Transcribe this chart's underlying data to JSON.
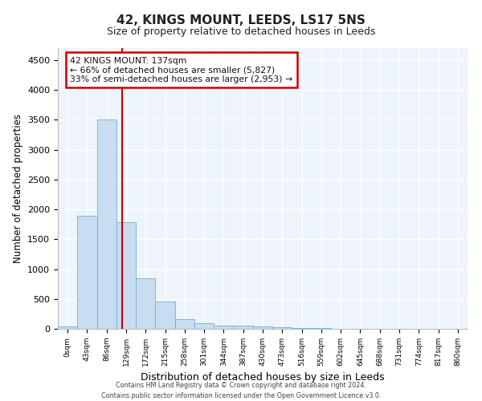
{
  "title": "42, KINGS MOUNT, LEEDS, LS17 5NS",
  "subtitle": "Size of property relative to detached houses in Leeds",
  "xlabel": "Distribution of detached houses by size in Leeds",
  "ylabel": "Number of detached properties",
  "bar_color": "#c9ddf0",
  "bar_edge_color": "#6aafd6",
  "bin_labels": [
    "0sqm",
    "43sqm",
    "86sqm",
    "129sqm",
    "172sqm",
    "215sqm",
    "258sqm",
    "301sqm",
    "344sqm",
    "387sqm",
    "430sqm",
    "473sqm",
    "516sqm",
    "559sqm",
    "602sqm",
    "645sqm",
    "688sqm",
    "731sqm",
    "774sqm",
    "817sqm",
    "860sqm"
  ],
  "bar_heights": [
    40,
    1900,
    3500,
    1780,
    850,
    450,
    160,
    95,
    60,
    55,
    35,
    30,
    20,
    10,
    5,
    3,
    2,
    1,
    1,
    0,
    0
  ],
  "ylim": [
    0,
    4700
  ],
  "yticks": [
    0,
    500,
    1000,
    1500,
    2000,
    2500,
    3000,
    3500,
    4000,
    4500
  ],
  "vline_bin_index": 3,
  "annotation_line1": "42 KINGS MOUNT: 137sqm",
  "annotation_line2": "← 66% of detached houses are smaller (5,827)",
  "annotation_line3": "33% of semi-detached houses are larger (2,953) →",
  "annotation_box_color": "#ffffff",
  "annotation_box_edge": "#cc0000",
  "vline_color": "#cc0000",
  "footer_line1": "Contains HM Land Registry data © Crown copyright and database right 2024.",
  "footer_line2": "Contains public sector information licensed under the Open Government Licence v3.0.",
  "background_color": "#eef4fb",
  "grid_color": "#ffffff",
  "fig_background": "#ffffff"
}
